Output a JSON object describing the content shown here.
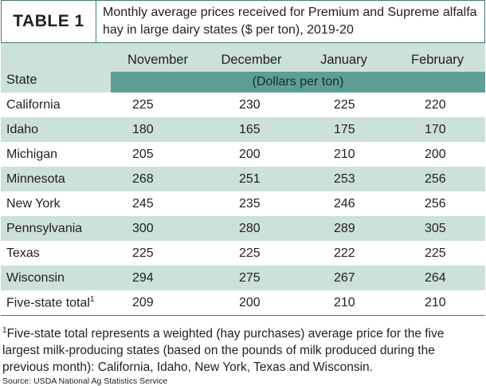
{
  "header": {
    "tag": "TABLE 1",
    "caption": "Monthly average prices received for Premium and Supreme alfalfa hay in large dairy states ($ per ton), 2019-20"
  },
  "table": {
    "state_header": "State",
    "months": [
      "November",
      "December",
      "January",
      "February"
    ],
    "unit": "(Dollars per ton)",
    "rows": [
      {
        "state": "California",
        "values": [
          "225",
          "230",
          "225",
          "220"
        ]
      },
      {
        "state": "Idaho",
        "values": [
          "180",
          "165",
          "175",
          "170"
        ]
      },
      {
        "state": "Michigan",
        "values": [
          "205",
          "200",
          "210",
          "200"
        ]
      },
      {
        "state": "Minnesota",
        "values": [
          "268",
          "251",
          "253",
          "256"
        ]
      },
      {
        "state": "New York",
        "values": [
          "245",
          "235",
          "246",
          "256"
        ]
      },
      {
        "state": "Pennsylvania",
        "values": [
          "300",
          "280",
          "289",
          "305"
        ]
      },
      {
        "state": "Texas",
        "values": [
          "225",
          "225",
          "222",
          "225"
        ]
      },
      {
        "state": "Wisconsin",
        "values": [
          "294",
          "275",
          "267",
          "264"
        ]
      },
      {
        "state": "Five-state total",
        "sup": "1",
        "values": [
          "209",
          "200",
          "210",
          "210"
        ]
      }
    ]
  },
  "footnote": {
    "marker": "1",
    "text": "Five-state total represents a weighted (hay purchases) average price for the five largest milk-producing states (based on the pounds of milk produced during the previous month): California, Idaho, New York, Texas and Wisconsin."
  },
  "source": "Source: USDA National Ag Statistics Service",
  "colors": {
    "header_band": "#cce0dc",
    "unit_band": "#5d9e95",
    "border": "#3f7a74"
  }
}
